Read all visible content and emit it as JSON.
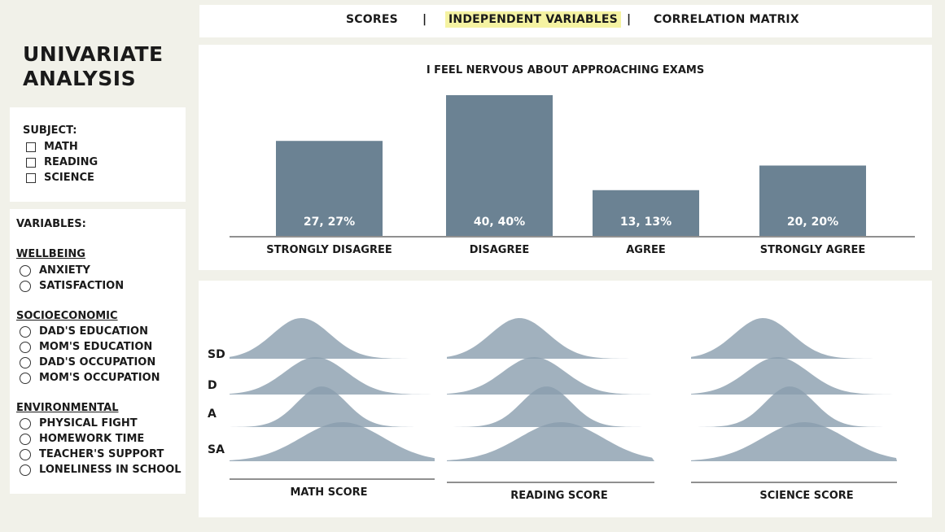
{
  "nav": {
    "tabs": [
      "SCORES",
      "INDEPENDENT VARIABLES",
      "CORRELATION MATRIX"
    ],
    "active_index": 1,
    "separator": "|",
    "highlight_color": "#f5f3a2"
  },
  "title": {
    "line1": "UNIVARIATE",
    "line2": "ANALYSIS"
  },
  "subject": {
    "label": "SUBJECT:",
    "options": [
      "MATH",
      "READING",
      "SCIENCE"
    ]
  },
  "variables": {
    "label": "VARIABLES:",
    "sections": [
      {
        "title": "WELLBEING",
        "options": [
          "ANXIETY",
          "SATISFACTION"
        ]
      },
      {
        "title": "SOCIOECONOMIC",
        "options": [
          "DAD'S EDUCATION",
          "MOM'S EDUCATION",
          "DAD'S OCCUPATION",
          "MOM'S OCCUPATION"
        ]
      },
      {
        "title": "ENVIRONMENTAL",
        "options": [
          "PHYSICAL FIGHT",
          "HOMEWORK TIME",
          "TEACHER'S SUPPORT",
          "LONELINESS IN SCHOOL"
        ]
      }
    ]
  },
  "chart_data": [
    {
      "type": "bar",
      "title": "I FEEL NERVOUS ABOUT APPROACHING EXAMS",
      "categories": [
        "STRONGLY DISAGREE",
        "DISAGREE",
        "AGREE",
        "STRONGLY AGREE"
      ],
      "values": [
        27,
        40,
        13,
        20
      ],
      "labels": [
        "27, 27%",
        "40, 40%",
        "13, 13%",
        "20, 20%"
      ],
      "ylim": [
        0,
        40
      ],
      "bar_color": "#6b8293"
    },
    {
      "type": "area",
      "subtype": "ridgeline",
      "row_labels": [
        "SD",
        "D",
        "A",
        "SA"
      ],
      "panels": [
        {
          "xlabel": "MATH SCORE",
          "peaks": [
            0.35,
            0.42,
            0.45,
            0.55
          ],
          "spreads": [
            0.14,
            0.15,
            0.12,
            0.2
          ]
        },
        {
          "xlabel": "READING SCORE",
          "peaks": [
            0.35,
            0.42,
            0.48,
            0.55
          ],
          "spreads": [
            0.14,
            0.15,
            0.12,
            0.2
          ]
        },
        {
          "xlabel": "SCIENCE SCORE",
          "peaks": [
            0.35,
            0.42,
            0.48,
            0.55
          ],
          "spreads": [
            0.14,
            0.15,
            0.12,
            0.2
          ]
        }
      ],
      "fill_color": "#8a9eae"
    }
  ]
}
